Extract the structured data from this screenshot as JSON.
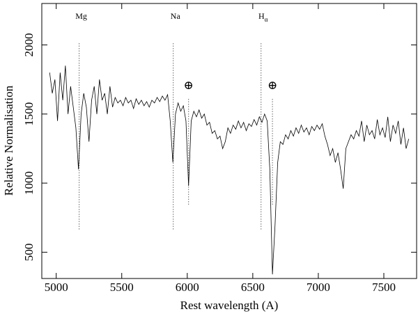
{
  "chart_data": {
    "type": "line",
    "x_label": "Rest wavelength (A)",
    "y_label": "Relative Normalisation",
    "xlim": [
      4890,
      7750
    ],
    "ylim": [
      310,
      2300
    ],
    "xticks": [
      5000,
      5500,
      6000,
      6500,
      7000,
      7500
    ],
    "yticks": [
      500,
      1000,
      1500,
      2000
    ],
    "color": "#000000",
    "annotations": [
      {
        "label": "Mg",
        "x": 5175
      },
      {
        "label": "Na",
        "x": 5893
      },
      {
        "label": "H",
        "subscript": "α",
        "x": 6563
      }
    ],
    "telluric": [
      {
        "label": "⊕",
        "x": 6010
      },
      {
        "label": "⊕",
        "x": 6650
      }
    ],
    "x": [
      4950,
      4970,
      4990,
      5010,
      5030,
      5050,
      5070,
      5090,
      5110,
      5130,
      5150,
      5170,
      5190,
      5210,
      5230,
      5250,
      5270,
      5290,
      5310,
      5330,
      5350,
      5370,
      5390,
      5410,
      5430,
      5450,
      5470,
      5490,
      5510,
      5530,
      5550,
      5570,
      5590,
      5610,
      5630,
      5650,
      5670,
      5690,
      5710,
      5730,
      5750,
      5770,
      5790,
      5810,
      5830,
      5850,
      5870,
      5890,
      5910,
      5930,
      5950,
      5970,
      5990,
      6010,
      6030,
      6050,
      6070,
      6090,
      6110,
      6130,
      6150,
      6170,
      6190,
      6210,
      6230,
      6250,
      6270,
      6290,
      6310,
      6330,
      6350,
      6370,
      6390,
      6410,
      6430,
      6450,
      6470,
      6490,
      6510,
      6530,
      6550,
      6570,
      6590,
      6610,
      6630,
      6650,
      6670,
      6690,
      6710,
      6730,
      6750,
      6770,
      6790,
      6810,
      6830,
      6850,
      6870,
      6890,
      6910,
      6930,
      6950,
      6970,
      6990,
      7010,
      7030,
      7050,
      7070,
      7090,
      7110,
      7130,
      7150,
      7170,
      7190,
      7210,
      7230,
      7250,
      7270,
      7290,
      7310,
      7330,
      7350,
      7370,
      7390,
      7410,
      7430,
      7450,
      7470,
      7490,
      7510,
      7530,
      7550,
      7570,
      7590,
      7610,
      7630,
      7650,
      7670,
      7690
    ],
    "values": [
      1800,
      1650,
      1750,
      1450,
      1800,
      1600,
      1850,
      1500,
      1700,
      1550,
      1400,
      1100,
      1500,
      1650,
      1550,
      1300,
      1600,
      1700,
      1500,
      1750,
      1600,
      1650,
      1500,
      1700,
      1550,
      1620,
      1580,
      1600,
      1560,
      1620,
      1580,
      1600,
      1540,
      1610,
      1570,
      1600,
      1560,
      1590,
      1550,
      1600,
      1580,
      1620,
      1590,
      1630,
      1600,
      1640,
      1450,
      1150,
      1500,
      1580,
      1520,
      1560,
      1450,
      980,
      1450,
      1520,
      1480,
      1530,
      1470,
      1500,
      1420,
      1440,
      1360,
      1380,
      1320,
      1340,
      1250,
      1300,
      1400,
      1360,
      1420,
      1390,
      1450,
      1400,
      1440,
      1380,
      1430,
      1410,
      1460,
      1420,
      1480,
      1440,
      1500,
      1450,
      1100,
      340,
      700,
      1150,
      1300,
      1280,
      1350,
      1320,
      1380,
      1340,
      1400,
      1360,
      1420,
      1370,
      1400,
      1350,
      1410,
      1380,
      1420,
      1390,
      1430,
      1340,
      1280,
      1200,
      1250,
      1150,
      1220,
      1100,
      960,
      1250,
      1300,
      1350,
      1320,
      1380,
      1340,
      1450,
      1300,
      1420,
      1350,
      1380,
      1320,
      1460,
      1350,
      1400,
      1330,
      1480,
      1300,
      1420,
      1360,
      1450,
      1280,
      1400,
      1250,
      1320
    ]
  }
}
